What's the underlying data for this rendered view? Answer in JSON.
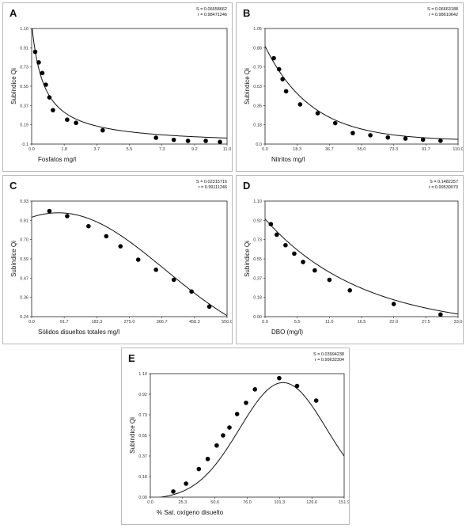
{
  "charts": [
    {
      "panel": "A",
      "stats": [
        "S = 0.06658662",
        "r = 0.98471246"
      ],
      "xlabel": "Fosfatos mg/l",
      "ylabel": "Subíndice Qi",
      "x_ticks": [
        "0.0",
        "1.8",
        "3.7",
        "5.5",
        "7.3",
        "9.2",
        "11.0"
      ],
      "y_ticks": [
        "0.1",
        "0.19",
        "0.37",
        "0.55",
        "0.73",
        "0.91",
        "1.10"
      ],
      "xlim": [
        0,
        11
      ],
      "ylim": [
        0.01,
        1.1
      ],
      "points": [
        [
          0.2,
          0.88
        ],
        [
          0.4,
          0.78
        ],
        [
          0.6,
          0.68
        ],
        [
          0.8,
          0.57
        ],
        [
          1.0,
          0.45
        ],
        [
          1.2,
          0.33
        ],
        [
          2.0,
          0.24
        ],
        [
          2.5,
          0.21
        ],
        [
          4.0,
          0.14
        ],
        [
          7.0,
          0.07
        ],
        [
          8.0,
          0.05
        ],
        [
          8.8,
          0.04
        ],
        [
          9.8,
          0.04
        ],
        [
          10.6,
          0.03
        ]
      ],
      "curve": {
        "type": "reciprocal",
        "a": 0.78,
        "c": 0.68
      }
    },
    {
      "panel": "B",
      "stats": [
        "S = 0.06663188",
        "r = 0.98610642"
      ],
      "xlabel": "Nitritos mg/l",
      "ylabel": "Subíndice Qi",
      "x_ticks": [
        "0.0",
        "18.3",
        "36.7",
        "55.0",
        "73.3",
        "91.7",
        "110.0"
      ],
      "y_ticks": [
        "0.0",
        "0.18",
        "0.35",
        "0.53",
        "0.70",
        "0.88",
        "1.05"
      ],
      "xlim": [
        0,
        110
      ],
      "ylim": [
        0,
        1.05
      ],
      "points": [
        [
          5,
          0.78
        ],
        [
          8,
          0.68
        ],
        [
          10,
          0.59
        ],
        [
          12,
          0.48
        ],
        [
          20,
          0.36
        ],
        [
          30,
          0.28
        ],
        [
          40,
          0.19
        ],
        [
          50,
          0.1
        ],
        [
          60,
          0.08
        ],
        [
          70,
          0.06
        ],
        [
          80,
          0.05
        ],
        [
          90,
          0.04
        ],
        [
          100,
          0.03
        ]
      ],
      "curve": {
        "type": "exponential",
        "a": 0.86,
        "k": 0.038,
        "c": 0.03
      }
    },
    {
      "panel": "C",
      "stats": [
        "S = 0.02315716",
        "r = 0.99111246"
      ],
      "xlabel": "Sólidos disueltos totales mg/l",
      "ylabel": "Subíndice Qi",
      "x_ticks": [
        "0.0",
        "91.7",
        "183.3",
        "275.0",
        "366.7",
        "458.3",
        "550.0"
      ],
      "y_ticks": [
        "0.24",
        "0.36",
        "0.47",
        "0.59",
        "0.70",
        "0.81",
        "0.93"
      ],
      "xlim": [
        0,
        550
      ],
      "ylim": [
        0.24,
        0.93
      ],
      "points": [
        [
          50,
          0.87
        ],
        [
          100,
          0.84
        ],
        [
          160,
          0.78
        ],
        [
          210,
          0.72
        ],
        [
          250,
          0.66
        ],
        [
          300,
          0.58
        ],
        [
          350,
          0.52
        ],
        [
          400,
          0.46
        ],
        [
          450,
          0.39
        ],
        [
          500,
          0.3
        ]
      ],
      "curve": {
        "type": "gaussian",
        "a": 0.86,
        "mu": 75,
        "sigma": 300,
        "c": 0.0
      }
    },
    {
      "panel": "D",
      "stats": [
        "S = 0.1482257",
        "r = 0.99530070"
      ],
      "xlabel": "DBO (mg/l)",
      "ylabel": "Subíndice Qi",
      "x_ticks": [
        "0.0",
        "5.5",
        "11.0",
        "16.5",
        "22.0",
        "27.5",
        "33.0"
      ],
      "y_ticks": [
        "0.00",
        "0.18",
        "0.37",
        "0.55",
        "0.73",
        "0.92",
        "1.10"
      ],
      "xlim": [
        0,
        33
      ],
      "ylim": [
        0,
        1.1
      ],
      "points": [
        [
          1,
          0.88
        ],
        [
          2,
          0.78
        ],
        [
          3.5,
          0.68
        ],
        [
          5,
          0.6
        ],
        [
          6.5,
          0.52
        ],
        [
          8.5,
          0.44
        ],
        [
          11,
          0.35
        ],
        [
          14.5,
          0.25
        ],
        [
          22,
          0.12
        ],
        [
          30,
          0.02
        ]
      ],
      "curve": {
        "type": "exponential",
        "a": 1.05,
        "k": 0.06,
        "c": -0.12
      }
    },
    {
      "panel": "E",
      "stats": [
        "S = 0.03994238",
        "r = 0.99632304"
      ],
      "xlabel": "% Sat. oxígeno disuelto",
      "ylabel": "Subíndice Qi",
      "x_ticks": [
        "0.0",
        "25.3",
        "50.6",
        "76.0",
        "101.3",
        "126.6",
        "151.9"
      ],
      "y_ticks": [
        "0.00",
        "0.18",
        "0.37",
        "0.55",
        "0.73",
        "0.92",
        "1.10"
      ],
      "xlim": [
        0,
        151.9
      ],
      "ylim": [
        0,
        1.1
      ],
      "points": [
        [
          18,
          0.05
        ],
        [
          28,
          0.12
        ],
        [
          38,
          0.25
        ],
        [
          45,
          0.34
        ],
        [
          52,
          0.46
        ],
        [
          57,
          0.55
        ],
        [
          62,
          0.62
        ],
        [
          68,
          0.74
        ],
        [
          75,
          0.84
        ],
        [
          82,
          0.96
        ],
        [
          101,
          1.06
        ],
        [
          115,
          0.99
        ],
        [
          130,
          0.86
        ]
      ],
      "curve": {
        "type": "gaussian",
        "a": 1.04,
        "mu": 104,
        "sigma": 34,
        "c": -0.02
      }
    }
  ]
}
